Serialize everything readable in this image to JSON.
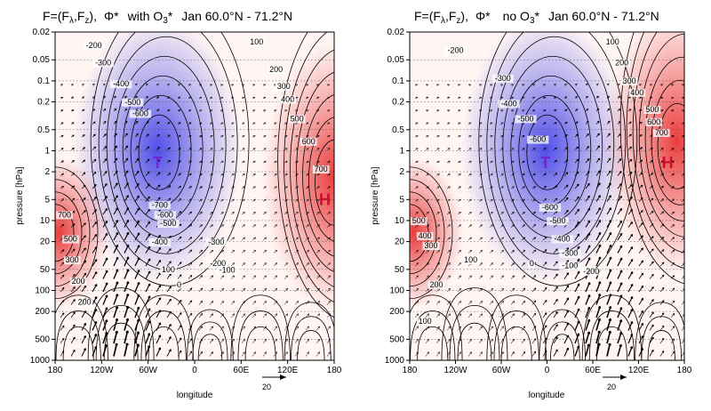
{
  "chart_data": [
    {
      "type": "heatmap",
      "title_parts": {
        "vector": "F=(F",
        "sub1": "λ",
        "sep": ",F",
        "sub2": "z",
        "close": "),",
        "field": "Φ*",
        "mode": "with O",
        "mode_sub": "3",
        "mode_star": "*",
        "period": "Jan 60.0°N - 71.2°N"
      },
      "xlabel": "longitude",
      "ylabel": "pressure [hPa]",
      "x_ticks": [
        "180",
        "120W",
        "60W",
        "0",
        "60E",
        "120E",
        "180"
      ],
      "y_ticks": [
        "0.02",
        "0.05",
        "0.1",
        "0.2",
        "0.5",
        "1",
        "2",
        "5",
        "10",
        "20",
        "50",
        "100",
        "200",
        "500",
        "1000"
      ],
      "xlim": [
        -180,
        180
      ],
      "ylim": [
        1000,
        0.02
      ],
      "y_scale": "log",
      "low_label": "T",
      "high_label": "H",
      "low_center": {
        "lon": -48,
        "p": 1.5
      },
      "high_center": {
        "lon": 168,
        "p": 5
      },
      "contour_labels": [
        {
          "text": "-200",
          "lon": -130,
          "p": 0.034
        },
        {
          "text": "-300",
          "lon": -118,
          "p": 0.06
        },
        {
          "text": "-400",
          "lon": -95,
          "p": 0.12
        },
        {
          "text": "-500",
          "lon": -80,
          "p": 0.22
        },
        {
          "text": "-600",
          "lon": -70,
          "p": 0.32
        },
        {
          "text": "100",
          "lon": 80,
          "p": 0.03
        },
        {
          "text": "200",
          "lon": 105,
          "p": 0.075
        },
        {
          "text": "300",
          "lon": 115,
          "p": 0.13
        },
        {
          "text": "400",
          "lon": 120,
          "p": 0.2
        },
        {
          "text": "500",
          "lon": 132,
          "p": 0.38
        },
        {
          "text": "600",
          "lon": 147,
          "p": 0.8
        },
        {
          "text": "700",
          "lon": 163,
          "p": 2
        },
        {
          "text": "-700",
          "lon": -45,
          "p": 6.5
        },
        {
          "text": "-600",
          "lon": -38,
          "p": 9
        },
        {
          "text": "-500",
          "lon": -34,
          "p": 12
        },
        {
          "text": "-400",
          "lon": -45,
          "p": 22
        },
        {
          "text": "-300",
          "lon": 28,
          "p": 22
        },
        {
          "text": "-200",
          "lon": 30,
          "p": 45
        },
        {
          "text": "-100",
          "lon": 42,
          "p": 56
        },
        {
          "text": "100",
          "lon": -34,
          "p": 55
        },
        {
          "text": "0",
          "lon": -20,
          "p": 90
        },
        {
          "text": "700",
          "lon": -168,
          "p": 9
        },
        {
          "text": "500",
          "lon": -160,
          "p": 20
        },
        {
          "text": "300",
          "lon": -158,
          "p": 40
        },
        {
          "text": "200",
          "lon": -150,
          "p": 80
        },
        {
          "text": "200",
          "lon": -142,
          "p": 160
        }
      ],
      "arrow_scale_label": "20"
    },
    {
      "type": "heatmap",
      "title_parts": {
        "vector": "F=(F",
        "sub1": "λ",
        "sep": ",F",
        "sub2": "z",
        "close": "),",
        "field": "Φ*",
        "mode": "no O",
        "mode_sub": "3",
        "mode_star": "*",
        "period": "Jan 60.0°N - 71.2°N"
      },
      "xlabel": "longitude",
      "ylabel": "pressure [hPa]",
      "x_ticks": [
        "180",
        "120W",
        "60W",
        "0",
        "60E",
        "120E",
        "180"
      ],
      "y_ticks": [
        "0.02",
        "0.05",
        "0.1",
        "0.2",
        "0.5",
        "1",
        "2",
        "5",
        "10",
        "20",
        "50",
        "100",
        "200",
        "500",
        "1000"
      ],
      "xlim": [
        -180,
        180
      ],
      "ylim": [
        1000,
        0.02
      ],
      "y_scale": "log",
      "low_label": "T",
      "high_label": "H",
      "low_center": {
        "lon": -2,
        "p": 1.5
      },
      "high_center": {
        "lon": 158,
        "p": 1.5
      },
      "contour_labels": [
        {
          "text": "-200",
          "lon": -120,
          "p": 0.04
        },
        {
          "text": "-300",
          "lon": -58,
          "p": 0.1
        },
        {
          "text": "-400",
          "lon": -50,
          "p": 0.23
        },
        {
          "text": "-500",
          "lon": -28,
          "p": 0.38
        },
        {
          "text": "-600",
          "lon": -12,
          "p": 0.75
        },
        {
          "text": "100",
          "lon": 86,
          "p": 0.03
        },
        {
          "text": "200",
          "lon": 98,
          "p": 0.06
        },
        {
          "text": "300",
          "lon": 108,
          "p": 0.11
        },
        {
          "text": "400",
          "lon": 118,
          "p": 0.16
        },
        {
          "text": "500",
          "lon": 138,
          "p": 0.28
        },
        {
          "text": "600",
          "lon": 140,
          "p": 0.42
        },
        {
          "text": "700",
          "lon": 150,
          "p": 0.6
        },
        {
          "text": "-600",
          "lon": 4,
          "p": 7
        },
        {
          "text": "-500",
          "lon": 14,
          "p": 11
        },
        {
          "text": "-400",
          "lon": 20,
          "p": 20
        },
        {
          "text": "-300",
          "lon": 30,
          "p": 32
        },
        {
          "text": "-200",
          "lon": 58,
          "p": 58
        },
        {
          "text": "-100",
          "lon": 30,
          "p": 48
        },
        {
          "text": "0",
          "lon": -20,
          "p": 45
        },
        {
          "text": "100",
          "lon": -100,
          "p": 40
        },
        {
          "text": "300",
          "lon": -152,
          "p": 25
        },
        {
          "text": "400",
          "lon": -160,
          "p": 18
        },
        {
          "text": "500",
          "lon": -168,
          "p": 11
        },
        {
          "text": "200",
          "lon": -145,
          "p": 90
        },
        {
          "text": "100",
          "lon": -160,
          "p": 300
        }
      ],
      "arrow_scale_label": "20"
    }
  ],
  "colors": {
    "low": "#3232e6",
    "high": "#e61e1e",
    "low_label": "#6a2bd0",
    "high_label": "#c8102e",
    "contour": "#000000"
  }
}
